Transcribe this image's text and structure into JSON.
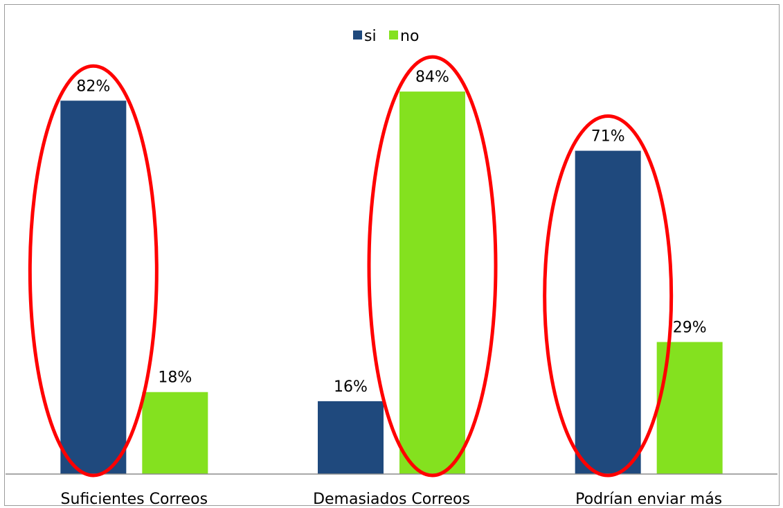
{
  "chart_data": {
    "type": "bar",
    "title": "",
    "xlabel": "",
    "ylabel": "",
    "categories": [
      "Suficientes Correos",
      "Demasiados Correos",
      "Podrían enviar más"
    ],
    "series": [
      {
        "name": "si",
        "values": [
          82,
          16,
          71
        ],
        "labels": [
          "82%",
          "16%",
          "71%"
        ],
        "color": "#1f497d"
      },
      {
        "name": "no",
        "values": [
          18,
          84,
          29
        ],
        "labels": [
          "18%",
          "84%",
          "29%"
        ],
        "color": "#84e11f"
      }
    ],
    "ylim": [
      0,
      100
    ],
    "grid": false,
    "legend": "top-center",
    "annotations": [
      {
        "type": "ellipse",
        "category": 0,
        "series": 0,
        "color": "#ff0000"
      },
      {
        "type": "ellipse",
        "category": 1,
        "series": 1,
        "color": "#ff0000"
      },
      {
        "type": "ellipse",
        "category": 2,
        "series": 0,
        "color": "#ff0000"
      }
    ]
  }
}
